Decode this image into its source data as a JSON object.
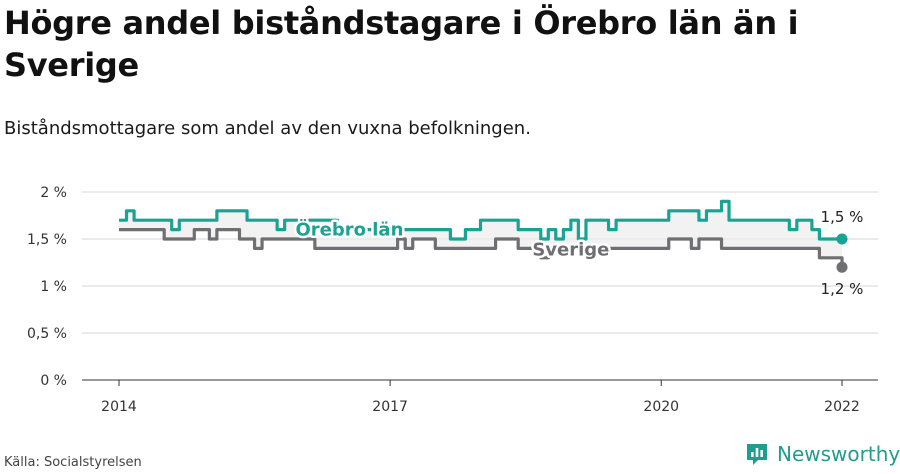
{
  "title": "Högre andel biståndstagare i Örebro län än i Sverige",
  "subtitle": "Biståndsmottagare som andel av den vuxna befolkningen.",
  "source": "Källa: Socialstyrelsen",
  "brand": {
    "name": "Newsworthy",
    "icon": "newsworthy-logo-icon",
    "color": "#1f9e8e"
  },
  "chart_data": {
    "type": "line",
    "xlim": [
      2014,
      2022
    ],
    "ylim": [
      0,
      2
    ],
    "y_ticks": [
      {
        "value": 0,
        "label": "0 %"
      },
      {
        "value": 0.5,
        "label": "0,5 %"
      },
      {
        "value": 1,
        "label": "1 %"
      },
      {
        "value": 1.5,
        "label": "1,5 %"
      },
      {
        "value": 2,
        "label": "2 %"
      }
    ],
    "x_ticks": [
      {
        "value": 2014,
        "label": "2014"
      },
      {
        "value": 2017,
        "label": "2017"
      },
      {
        "value": 2020,
        "label": "2020"
      },
      {
        "value": 2022,
        "label": "2022"
      }
    ],
    "grid": true,
    "series": [
      {
        "name": "Örebro län",
        "color": "#1aa394",
        "end_label": "1,5 %",
        "x": [
          2014,
          2014.083,
          2014.167,
          2014.25,
          2014.333,
          2014.417,
          2014.5,
          2014.583,
          2014.667,
          2014.75,
          2014.833,
          2014.917,
          2015,
          2015.083,
          2015.167,
          2015.25,
          2015.333,
          2015.417,
          2015.5,
          2015.583,
          2015.667,
          2015.75,
          2015.833,
          2015.917,
          2016,
          2016.083,
          2016.167,
          2016.25,
          2016.333,
          2016.417,
          2016.5,
          2016.583,
          2016.667,
          2016.75,
          2016.833,
          2016.917,
          2017,
          2017.083,
          2017.167,
          2017.25,
          2017.333,
          2017.417,
          2017.5,
          2017.583,
          2017.667,
          2017.75,
          2017.833,
          2017.917,
          2018,
          2018.083,
          2018.167,
          2018.25,
          2018.333,
          2018.417,
          2018.5,
          2018.583,
          2018.667,
          2018.75,
          2018.833,
          2018.917,
          2019,
          2019.083,
          2019.167,
          2019.25,
          2019.333,
          2019.417,
          2019.5,
          2019.583,
          2019.667,
          2019.75,
          2019.833,
          2019.917,
          2020,
          2020.083,
          2020.167,
          2020.25,
          2020.333,
          2020.417,
          2020.5,
          2020.583,
          2020.667,
          2020.75,
          2020.833,
          2020.917,
          2021,
          2021.083,
          2021.167,
          2021.25,
          2021.333,
          2021.417,
          2021.5,
          2021.583,
          2021.667,
          2021.75,
          2021.833,
          2021.917,
          2022
        ],
        "values": [
          1.7,
          1.8,
          1.7,
          1.7,
          1.7,
          1.7,
          1.7,
          1.6,
          1.7,
          1.7,
          1.7,
          1.7,
          1.7,
          1.8,
          1.8,
          1.8,
          1.8,
          1.7,
          1.7,
          1.7,
          1.7,
          1.6,
          1.7,
          1.7,
          1.7,
          1.7,
          1.7,
          1.7,
          1.7,
          1.6,
          1.6,
          1.6,
          1.6,
          1.6,
          1.6,
          1.6,
          1.6,
          1.6,
          1.6,
          1.6,
          1.6,
          1.6,
          1.6,
          1.6,
          1.5,
          1.5,
          1.6,
          1.6,
          1.7,
          1.7,
          1.7,
          1.7,
          1.7,
          1.6,
          1.6,
          1.6,
          1.5,
          1.6,
          1.5,
          1.6,
          1.7,
          1.5,
          1.7,
          1.7,
          1.7,
          1.6,
          1.7,
          1.7,
          1.7,
          1.7,
          1.7,
          1.7,
          1.7,
          1.8,
          1.8,
          1.8,
          1.8,
          1.7,
          1.8,
          1.8,
          1.9,
          1.7,
          1.7,
          1.7,
          1.7,
          1.7,
          1.7,
          1.7,
          1.7,
          1.6,
          1.7,
          1.7,
          1.6,
          1.5,
          1.5,
          1.5,
          1.5
        ]
      },
      {
        "name": "Sverige",
        "color": "#6e6e73",
        "end_label": "1,2 %",
        "x": [
          2014,
          2014.083,
          2014.167,
          2014.25,
          2014.333,
          2014.417,
          2014.5,
          2014.583,
          2014.667,
          2014.75,
          2014.833,
          2014.917,
          2015,
          2015.083,
          2015.167,
          2015.25,
          2015.333,
          2015.417,
          2015.5,
          2015.583,
          2015.667,
          2015.75,
          2015.833,
          2015.917,
          2016,
          2016.083,
          2016.167,
          2016.25,
          2016.333,
          2016.417,
          2016.5,
          2016.583,
          2016.667,
          2016.75,
          2016.833,
          2016.917,
          2017,
          2017.083,
          2017.167,
          2017.25,
          2017.333,
          2017.417,
          2017.5,
          2017.583,
          2017.667,
          2017.75,
          2017.833,
          2017.917,
          2018,
          2018.083,
          2018.167,
          2018.25,
          2018.333,
          2018.417,
          2018.5,
          2018.583,
          2018.667,
          2018.75,
          2018.833,
          2018.917,
          2019,
          2019.083,
          2019.167,
          2019.25,
          2019.333,
          2019.417,
          2019.5,
          2019.583,
          2019.667,
          2019.75,
          2019.833,
          2019.917,
          2020,
          2020.083,
          2020.167,
          2020.25,
          2020.333,
          2020.417,
          2020.5,
          2020.583,
          2020.667,
          2020.75,
          2020.833,
          2020.917,
          2021,
          2021.083,
          2021.167,
          2021.25,
          2021.333,
          2021.417,
          2021.5,
          2021.583,
          2021.667,
          2021.75,
          2021.833,
          2021.917,
          2022
        ],
        "values": [
          1.6,
          1.6,
          1.6,
          1.6,
          1.6,
          1.6,
          1.5,
          1.5,
          1.5,
          1.5,
          1.6,
          1.6,
          1.5,
          1.6,
          1.6,
          1.6,
          1.5,
          1.5,
          1.4,
          1.5,
          1.5,
          1.5,
          1.5,
          1.5,
          1.5,
          1.5,
          1.4,
          1.4,
          1.4,
          1.4,
          1.4,
          1.4,
          1.4,
          1.4,
          1.4,
          1.4,
          1.4,
          1.5,
          1.4,
          1.5,
          1.5,
          1.5,
          1.4,
          1.4,
          1.4,
          1.4,
          1.4,
          1.4,
          1.4,
          1.4,
          1.5,
          1.5,
          1.5,
          1.4,
          1.4,
          1.4,
          1.3,
          1.4,
          1.4,
          1.4,
          1.4,
          1.4,
          1.4,
          1.4,
          1.4,
          1.4,
          1.4,
          1.4,
          1.4,
          1.4,
          1.4,
          1.4,
          1.4,
          1.5,
          1.5,
          1.5,
          1.4,
          1.5,
          1.5,
          1.5,
          1.4,
          1.4,
          1.4,
          1.4,
          1.4,
          1.4,
          1.4,
          1.4,
          1.4,
          1.4,
          1.4,
          1.4,
          1.4,
          1.3,
          1.3,
          1.3,
          1.2
        ]
      }
    ]
  }
}
